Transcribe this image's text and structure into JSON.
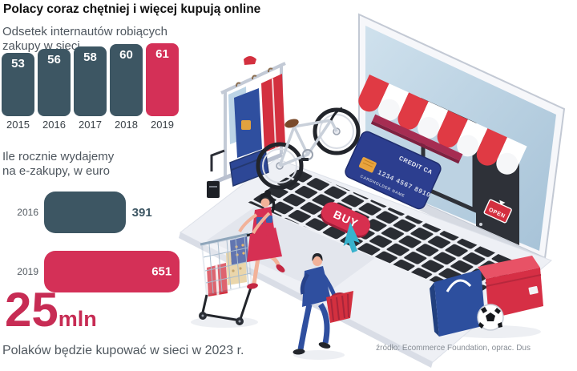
{
  "title": "Polacy coraz chętniej i więcej kupują online",
  "source": "źródło: Ecommerce Foundation, oprac. Dus",
  "colors": {
    "accent_red": "#d43057",
    "dark_slate": "#3d5663",
    "text_gray": "#4e565e"
  },
  "chart_data": [
    {
      "type": "bar",
      "orientation": "vertical",
      "title": "Odsetek internautów robiących zakupy w sieci",
      "title_lines": [
        "Odsetek internautów robiących",
        "zakupy w sieci"
      ],
      "categories": [
        "2015",
        "2016",
        "2017",
        "2018",
        "2019"
      ],
      "values": [
        53,
        56,
        58,
        60,
        61
      ],
      "unit": "%",
      "highlight_index": 4,
      "bar_color": "#3d5663",
      "highlight_color": "#d43057",
      "value_labels_position": "inside-top",
      "grid": false,
      "legend": false
    },
    {
      "type": "bar",
      "orientation": "horizontal",
      "title": "Ile rocznie wydajemy na e-zakupy, w euro",
      "title_lines": [
        "Ile rocznie wydajemy",
        "na e-zakupy, w euro"
      ],
      "categories": [
        "2016",
        "2019"
      ],
      "values": [
        391,
        651
      ],
      "unit": "euro",
      "highlight_index": 1,
      "bar_color": "#3d5663",
      "highlight_color": "#d43057",
      "grid": false,
      "legend": false
    }
  ],
  "forecast": {
    "number": "25",
    "unit": "mln",
    "caption": "Polaków będzie kupować w sieci w 2023 r."
  },
  "illustration": {
    "buy_label": "BUY",
    "open_sign": "OPEN",
    "card_line1": "CREDIT CA",
    "card_line2": "1234 4567 8910",
    "card_line3": "CARDHOLDER NAME"
  }
}
